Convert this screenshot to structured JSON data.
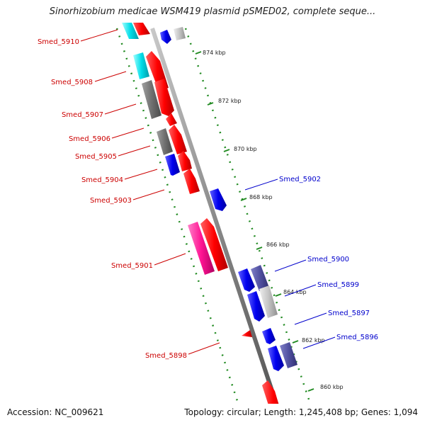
{
  "title": "Sinorhizobium medicae WSM419 plasmid pSMED02, complete seque...",
  "footer": {
    "accession": "Accession: NC_009621",
    "topology": "Topology: circular; Length: 1,245,408 bp; Genes: 1,094"
  },
  "colors": {
    "forward_label": "#cc0000",
    "reverse_label": "#0000cc",
    "backbone": "#808080",
    "tick": "#228b22",
    "red": "#ff0000",
    "blue": "#1010ee",
    "cyan": "#00d5e0",
    "gray": "#707070",
    "lightgray": "#c0c0c0",
    "pink": "#ff1493",
    "slate": "#5050a0"
  },
  "kbp_ticks": [
    "874 kbp",
    "872 kbp",
    "870 kbp",
    "868 kbp",
    "866 kbp",
    "864 kbp",
    "862 kbp",
    "860 kbp"
  ],
  "left_labels": [
    "Smed_5910",
    "Smed_5908",
    "Smed_5907",
    "Smed_5906",
    "Smed_5905",
    "Smed_5904",
    "Smed_5903",
    "Smed_5901",
    "Smed_5898"
  ],
  "right_labels": [
    "Smed_5902",
    "Smed_5900",
    "Smed_5899",
    "Smed_5897",
    "Smed_5896"
  ]
}
